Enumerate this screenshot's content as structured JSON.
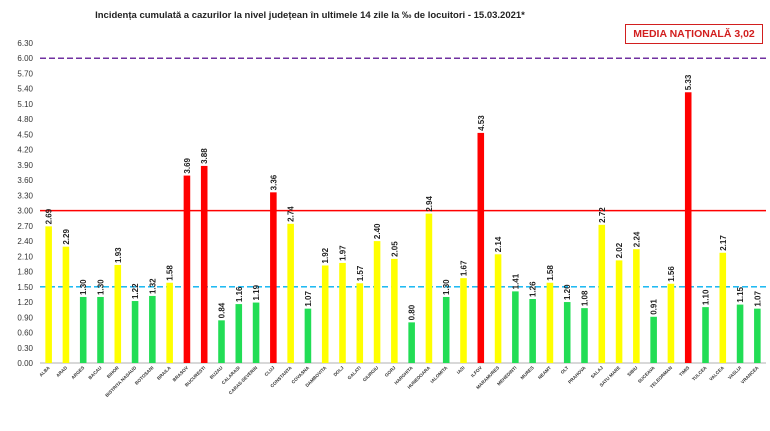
{
  "chart_data": {
    "type": "bar",
    "title": "Incidența cumulată a cazurilor la nivel județean în ultimele 14 zile   la ‰ de locuitori  - 15.03.2021*",
    "annotation": "MEDIA NAȚIONALĂ 3,02",
    "xlabel": "",
    "ylabel": "",
    "ylim": [
      0,
      6.3
    ],
    "yticks": [
      "0.00",
      "0.30",
      "0.60",
      "0.90",
      "1.20",
      "1.50",
      "1.80",
      "2.10",
      "2.40",
      "2.70",
      "3.00",
      "3.30",
      "3.60",
      "3.90",
      "4.20",
      "4.50",
      "4.80",
      "5.10",
      "5.40",
      "5.70",
      "6.00",
      "6.30"
    ],
    "grid": false,
    "legend": "none",
    "reference_lines": [
      {
        "value": 6.0,
        "color": "#7030a0",
        "style": "dashed"
      },
      {
        "value": 3.0,
        "color": "#ff0000",
        "style": "solid"
      },
      {
        "value": 1.5,
        "color": "#00b0f0",
        "style": "dashed"
      }
    ],
    "categories": [
      "ALBA",
      "ARAD",
      "ARGES",
      "BACAU",
      "BIHOR",
      "BISTRITA NASAUD",
      "BOTOSANI",
      "BRAILA",
      "BRASOV",
      "BUCURESTI",
      "BUZAU",
      "CALARASI",
      "CARAS-SEVERIN",
      "CLUJ",
      "CONSTANTA",
      "COVASNA",
      "DAMBOVITA",
      "DOLJ",
      "GALATI",
      "GIURGIU",
      "GORJ",
      "HARGHITA",
      "HUNEDOARA",
      "IALOMITA",
      "IASI",
      "ILFOV",
      "MARAMURES",
      "MEHEDINTI",
      "MURES",
      "NEAMT",
      "OLT",
      "PRAHOVA",
      "SALAJ",
      "SATU MARE",
      "SIBIU",
      "SUCEAVA",
      "TELEORMAN",
      "TIMIS",
      "TULCEA",
      "VALCEA",
      "VASLUI",
      "VRANCEA"
    ],
    "values": [
      2.69,
      2.29,
      1.3,
      1.3,
      1.93,
      1.22,
      1.32,
      1.58,
      3.69,
      3.88,
      0.84,
      1.16,
      1.19,
      3.36,
      2.74,
      1.07,
      1.92,
      1.97,
      1.57,
      2.4,
      2.05,
      0.8,
      2.94,
      1.3,
      1.67,
      4.53,
      2.14,
      1.41,
      1.26,
      1.58,
      1.2,
      1.08,
      2.72,
      2.02,
      2.24,
      0.91,
      1.56,
      5.33,
      1.1,
      2.17,
      1.15,
      1.07
    ],
    "colors": {
      "green": "#22dd55",
      "yellow": "#ffff00",
      "red": "#ff0000"
    }
  }
}
